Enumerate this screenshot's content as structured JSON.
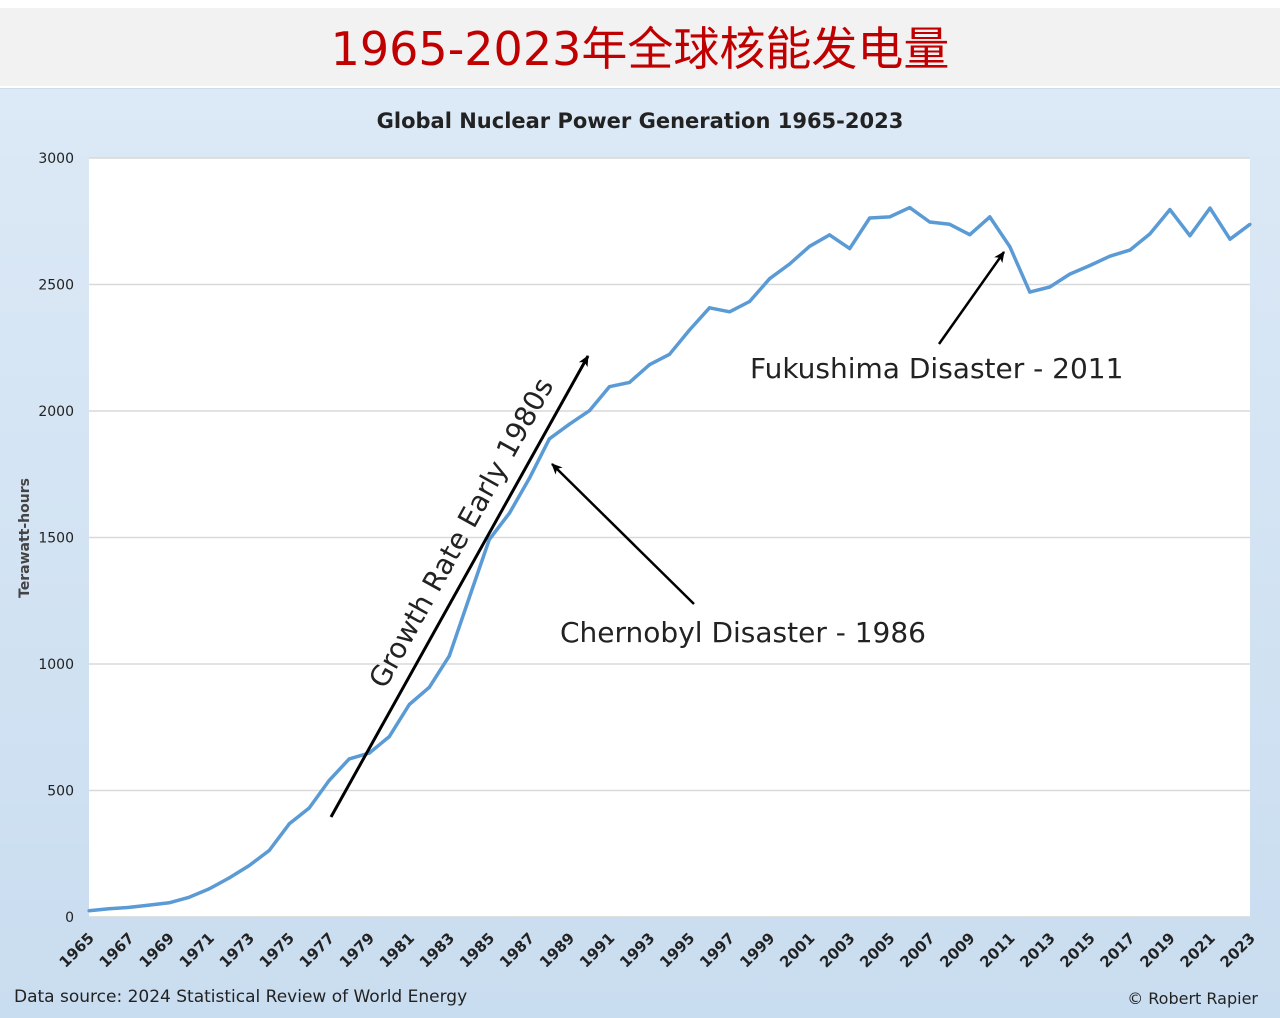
{
  "banner": {
    "title": "1965-2023年全球核能发电量"
  },
  "footer": {
    "source": "Data source: 2024 Statistical Review of World Energy",
    "copyright": "© Robert Rapier"
  },
  "colors": {
    "line": "#5b9bd5",
    "banner_title": "#c00000",
    "panel_bg": "#d6e6f5",
    "plot_bg": "#ffffff",
    "grid": "#d9d9d9"
  },
  "chart_data": {
    "type": "line",
    "title": "Global Nuclear Power Generation 1965-2023",
    "xlabel": "",
    "ylabel": "Terawatt-hours",
    "ylim": [
      0,
      3000
    ],
    "yticks": [
      0,
      500,
      1000,
      1500,
      2000,
      2500,
      3000
    ],
    "xticks": [
      "1965",
      "1967",
      "1969",
      "1971",
      "1973",
      "1975",
      "1977",
      "1979",
      "1981",
      "1983",
      "1985",
      "1987",
      "1989",
      "1991",
      "1993",
      "1995",
      "1997",
      "1999",
      "2001",
      "2003",
      "2005",
      "2007",
      "2009",
      "2011",
      "2013",
      "2015",
      "2017",
      "2019",
      "2021",
      "2023"
    ],
    "grid": true,
    "legend": "none",
    "series": [
      {
        "x": [
          1965,
          1966,
          1967,
          1968,
          1969,
          1970,
          1971,
          1972,
          1973,
          1974,
          1975,
          1976,
          1977,
          1978,
          1979,
          1980,
          1981,
          1982,
          1983,
          1984,
          1985,
          1986,
          1987,
          1988,
          1989,
          1990,
          1991,
          1992,
          1993,
          1994,
          1995,
          1996,
          1997,
          1998,
          1999,
          2000,
          2001,
          2002,
          2003,
          2004,
          2005,
          2006,
          2007,
          2008,
          2009,
          2010,
          2011,
          2012,
          2013,
          2014,
          2015,
          2016,
          2017,
          2018,
          2019,
          2020,
          2021,
          2022,
          2023
        ],
        "values": [
          25,
          33,
          38,
          47,
          56,
          78,
          111,
          154,
          203,
          263,
          368,
          431,
          540,
          625,
          648,
          713,
          840,
          908,
          1032,
          1263,
          1492,
          1596,
          1734,
          1890,
          1948,
          2001,
          2096,
          2113,
          2183,
          2224,
          2320,
          2408,
          2392,
          2433,
          2523,
          2581,
          2651,
          2696,
          2642,
          2763,
          2767,
          2804,
          2747,
          2738,
          2697,
          2767,
          2650,
          2470,
          2490,
          2541,
          2575,
          2612,
          2636,
          2700,
          2796,
          2693,
          2802,
          2679,
          2738
        ]
      }
    ],
    "annotations": [
      {
        "text": "Chernobyl Disaster - 1986"
      },
      {
        "text": "Fukushima Disaster - 2011"
      },
      {
        "text": "Growth Rate Early 1980s"
      }
    ]
  }
}
